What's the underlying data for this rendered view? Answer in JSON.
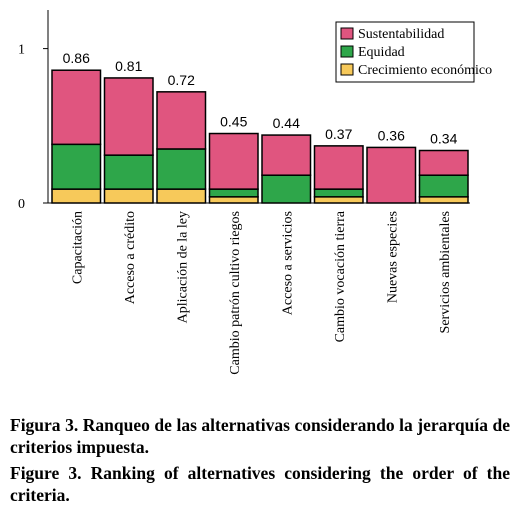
{
  "chart_data": {
    "type": "stacked_bar",
    "categories": [
      "Capacitación",
      "Acceso a crédito",
      "Aplicación de la ley",
      "Cambio patrón cultivo riegos",
      "Acceso a servicios",
      "Cambio vocación tierra",
      "Nuevas especies",
      "Servicios ambientales"
    ],
    "series": [
      {
        "name": "Sustentabilidad",
        "color": "#e0557f",
        "values": [
          0.48,
          0.5,
          0.37,
          0.36,
          0.26,
          0.28,
          0.36,
          0.16
        ]
      },
      {
        "name": "Equidad",
        "color": "#2ea64a",
        "values": [
          0.29,
          0.22,
          0.26,
          0.05,
          0.18,
          0.05,
          0,
          0.14
        ]
      },
      {
        "name": "Crecimiento económico",
        "color": "#f7c95a",
        "values": [
          0.09,
          0.09,
          0.09,
          0.04,
          0,
          0.04,
          0,
          0.04
        ]
      }
    ],
    "totals": [
      0.86,
      0.81,
      0.72,
      0.45,
      0.44,
      0.37,
      0.36,
      0.34
    ],
    "ylim": [
      0,
      1.25
    ],
    "yticks": [
      0,
      1
    ],
    "legend": "top-right"
  },
  "captions": [
    "Figura 3. Ranqueo de las alternativas considerando la jerarquía de criterios impuesta.",
    "Figure 3. Ranking of alternatives considering the order of the criteria."
  ]
}
